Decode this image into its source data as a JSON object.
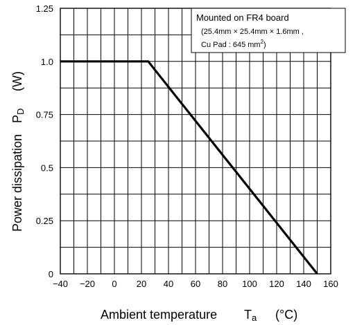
{
  "chart_data": {
    "type": "line",
    "xlabel_main": "Ambient temperature",
    "xlabel_symbol": "T",
    "xlabel_subscript": "a",
    "xlabel_unit": "(°C)",
    "ylabel_main": "Power dissipation",
    "ylabel_symbol": "P",
    "ylabel_subscript": "D",
    "ylabel_unit": "(W)",
    "xlim": [
      -40,
      160
    ],
    "ylim": [
      0,
      1.25
    ],
    "x_ticks": [
      -40,
      -20,
      0,
      20,
      40,
      60,
      80,
      100,
      120,
      140,
      160
    ],
    "x_tick_labels": [
      "−40",
      "−20",
      "0",
      "20",
      "40",
      "60",
      "80",
      "100",
      "120",
      "140",
      "160"
    ],
    "y_ticks": [
      0,
      0.25,
      0.5,
      0.75,
      1.0,
      1.25
    ],
    "y_tick_labels": [
      "0",
      "0.25",
      "0.5",
      "0.75",
      "1.0",
      "1.25"
    ],
    "x_minor_step": 10,
    "y_minor_step": 0.125,
    "grid": true,
    "series": [
      {
        "x": [
          -40,
          25,
          150
        ],
        "y": [
          1.0,
          1.0,
          0
        ]
      }
    ],
    "legend": {
      "position": "top-right",
      "line1": "Mounted on FR4 board",
      "line2": "(25.4mm × 25.4mm × 1.6mm ,",
      "line3_text": "Cu Pad : 645 mm",
      "line3_superscript": "2",
      "line3_end": ")"
    }
  }
}
